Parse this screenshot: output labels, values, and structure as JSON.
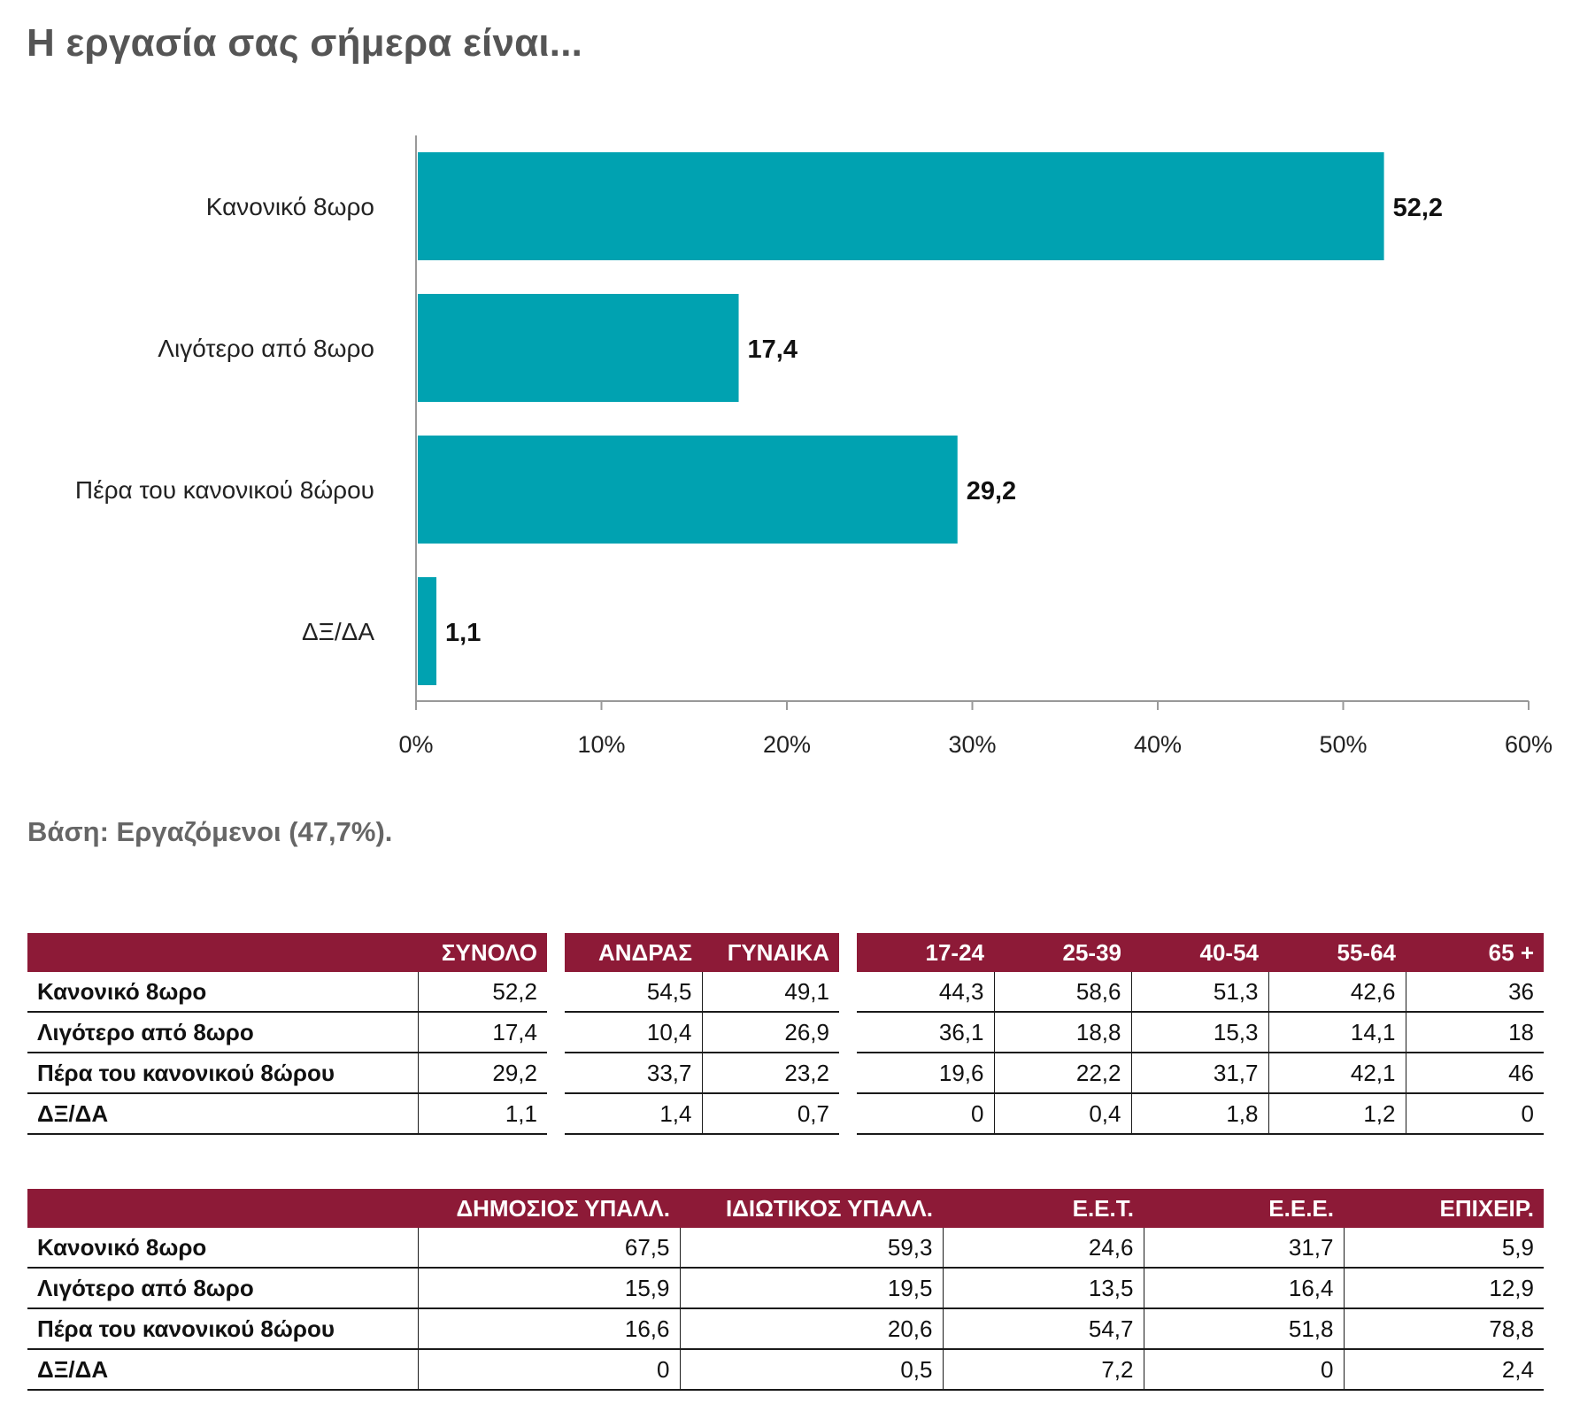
{
  "title": "Η εργασία σας σήμερα είναι...",
  "base_note": "Βάση: Εργαζόμενοι (47,7%).",
  "colors": {
    "bar": "#00a2b1",
    "header": "#8d1a37",
    "title": "#555555"
  },
  "chart_data": {
    "type": "bar",
    "orientation": "horizontal",
    "categories": [
      "Κανονικό 8ωρο",
      "Λιγότερο από 8ωρο",
      "Πέρα του κανονικού 8ώρου",
      "ΔΞ/ΔΑ"
    ],
    "values": [
      52.2,
      17.4,
      29.2,
      1.1
    ],
    "value_labels": [
      "52,2",
      "17,4",
      "29,2",
      "1,1"
    ],
    "xlim": [
      0,
      60
    ],
    "xticks": [
      0,
      10,
      20,
      30,
      40,
      50,
      60
    ],
    "xtick_labels": [
      "0%",
      "10%",
      "20%",
      "30%",
      "40%",
      "50%",
      "60%"
    ],
    "grid": false
  },
  "table1": {
    "headers": [
      "ΣΥΝΟΛΟ",
      "ΑΝΔΡΑΣ",
      "ΓΥΝΑΙΚΑ",
      "17-24",
      "25-39",
      "40-54",
      "55-64",
      "65 +"
    ],
    "rows": [
      {
        "label": "Κανονικό 8ωρο",
        "values": [
          "52,2",
          "54,5",
          "49,1",
          "44,3",
          "58,6",
          "51,3",
          "42,6",
          "36"
        ]
      },
      {
        "label": "Λιγότερο από 8ωρο",
        "values": [
          "17,4",
          "10,4",
          "26,9",
          "36,1",
          "18,8",
          "15,3",
          "14,1",
          "18"
        ]
      },
      {
        "label": "Πέρα του κανονικού 8ώρου",
        "values": [
          "29,2",
          "33,7",
          "23,2",
          "19,6",
          "22,2",
          "31,7",
          "42,1",
          "46"
        ]
      },
      {
        "label": "ΔΞ/ΔΑ",
        "values": [
          "1,1",
          "1,4",
          "0,7",
          "0",
          "0,4",
          "1,8",
          "1,2",
          "0"
        ]
      }
    ]
  },
  "table2": {
    "headers": [
      "ΔΗΜΟΣΙΟΣ ΥΠΑΛΛ.",
      "ΙΔΙΩΤΙΚΟΣ ΥΠΑΛΛ.",
      "Ε.Ε.Τ.",
      "Ε.Ε.Ε.",
      "ΕΠΙΧΕΙΡ."
    ],
    "rows": [
      {
        "label": "Κανονικό 8ωρο",
        "values": [
          "67,5",
          "59,3",
          "24,6",
          "31,7",
          "5,9"
        ]
      },
      {
        "label": "Λιγότερο από 8ωρο",
        "values": [
          "15,9",
          "19,5",
          "13,5",
          "16,4",
          "12,9"
        ]
      },
      {
        "label": "Πέρα του κανονικού 8ώρου",
        "values": [
          "16,6",
          "20,6",
          "54,7",
          "51,8",
          "78,8"
        ]
      },
      {
        "label": "ΔΞ/ΔΑ",
        "values": [
          "0",
          "0,5",
          "7,2",
          "0",
          "2,4"
        ]
      }
    ]
  }
}
